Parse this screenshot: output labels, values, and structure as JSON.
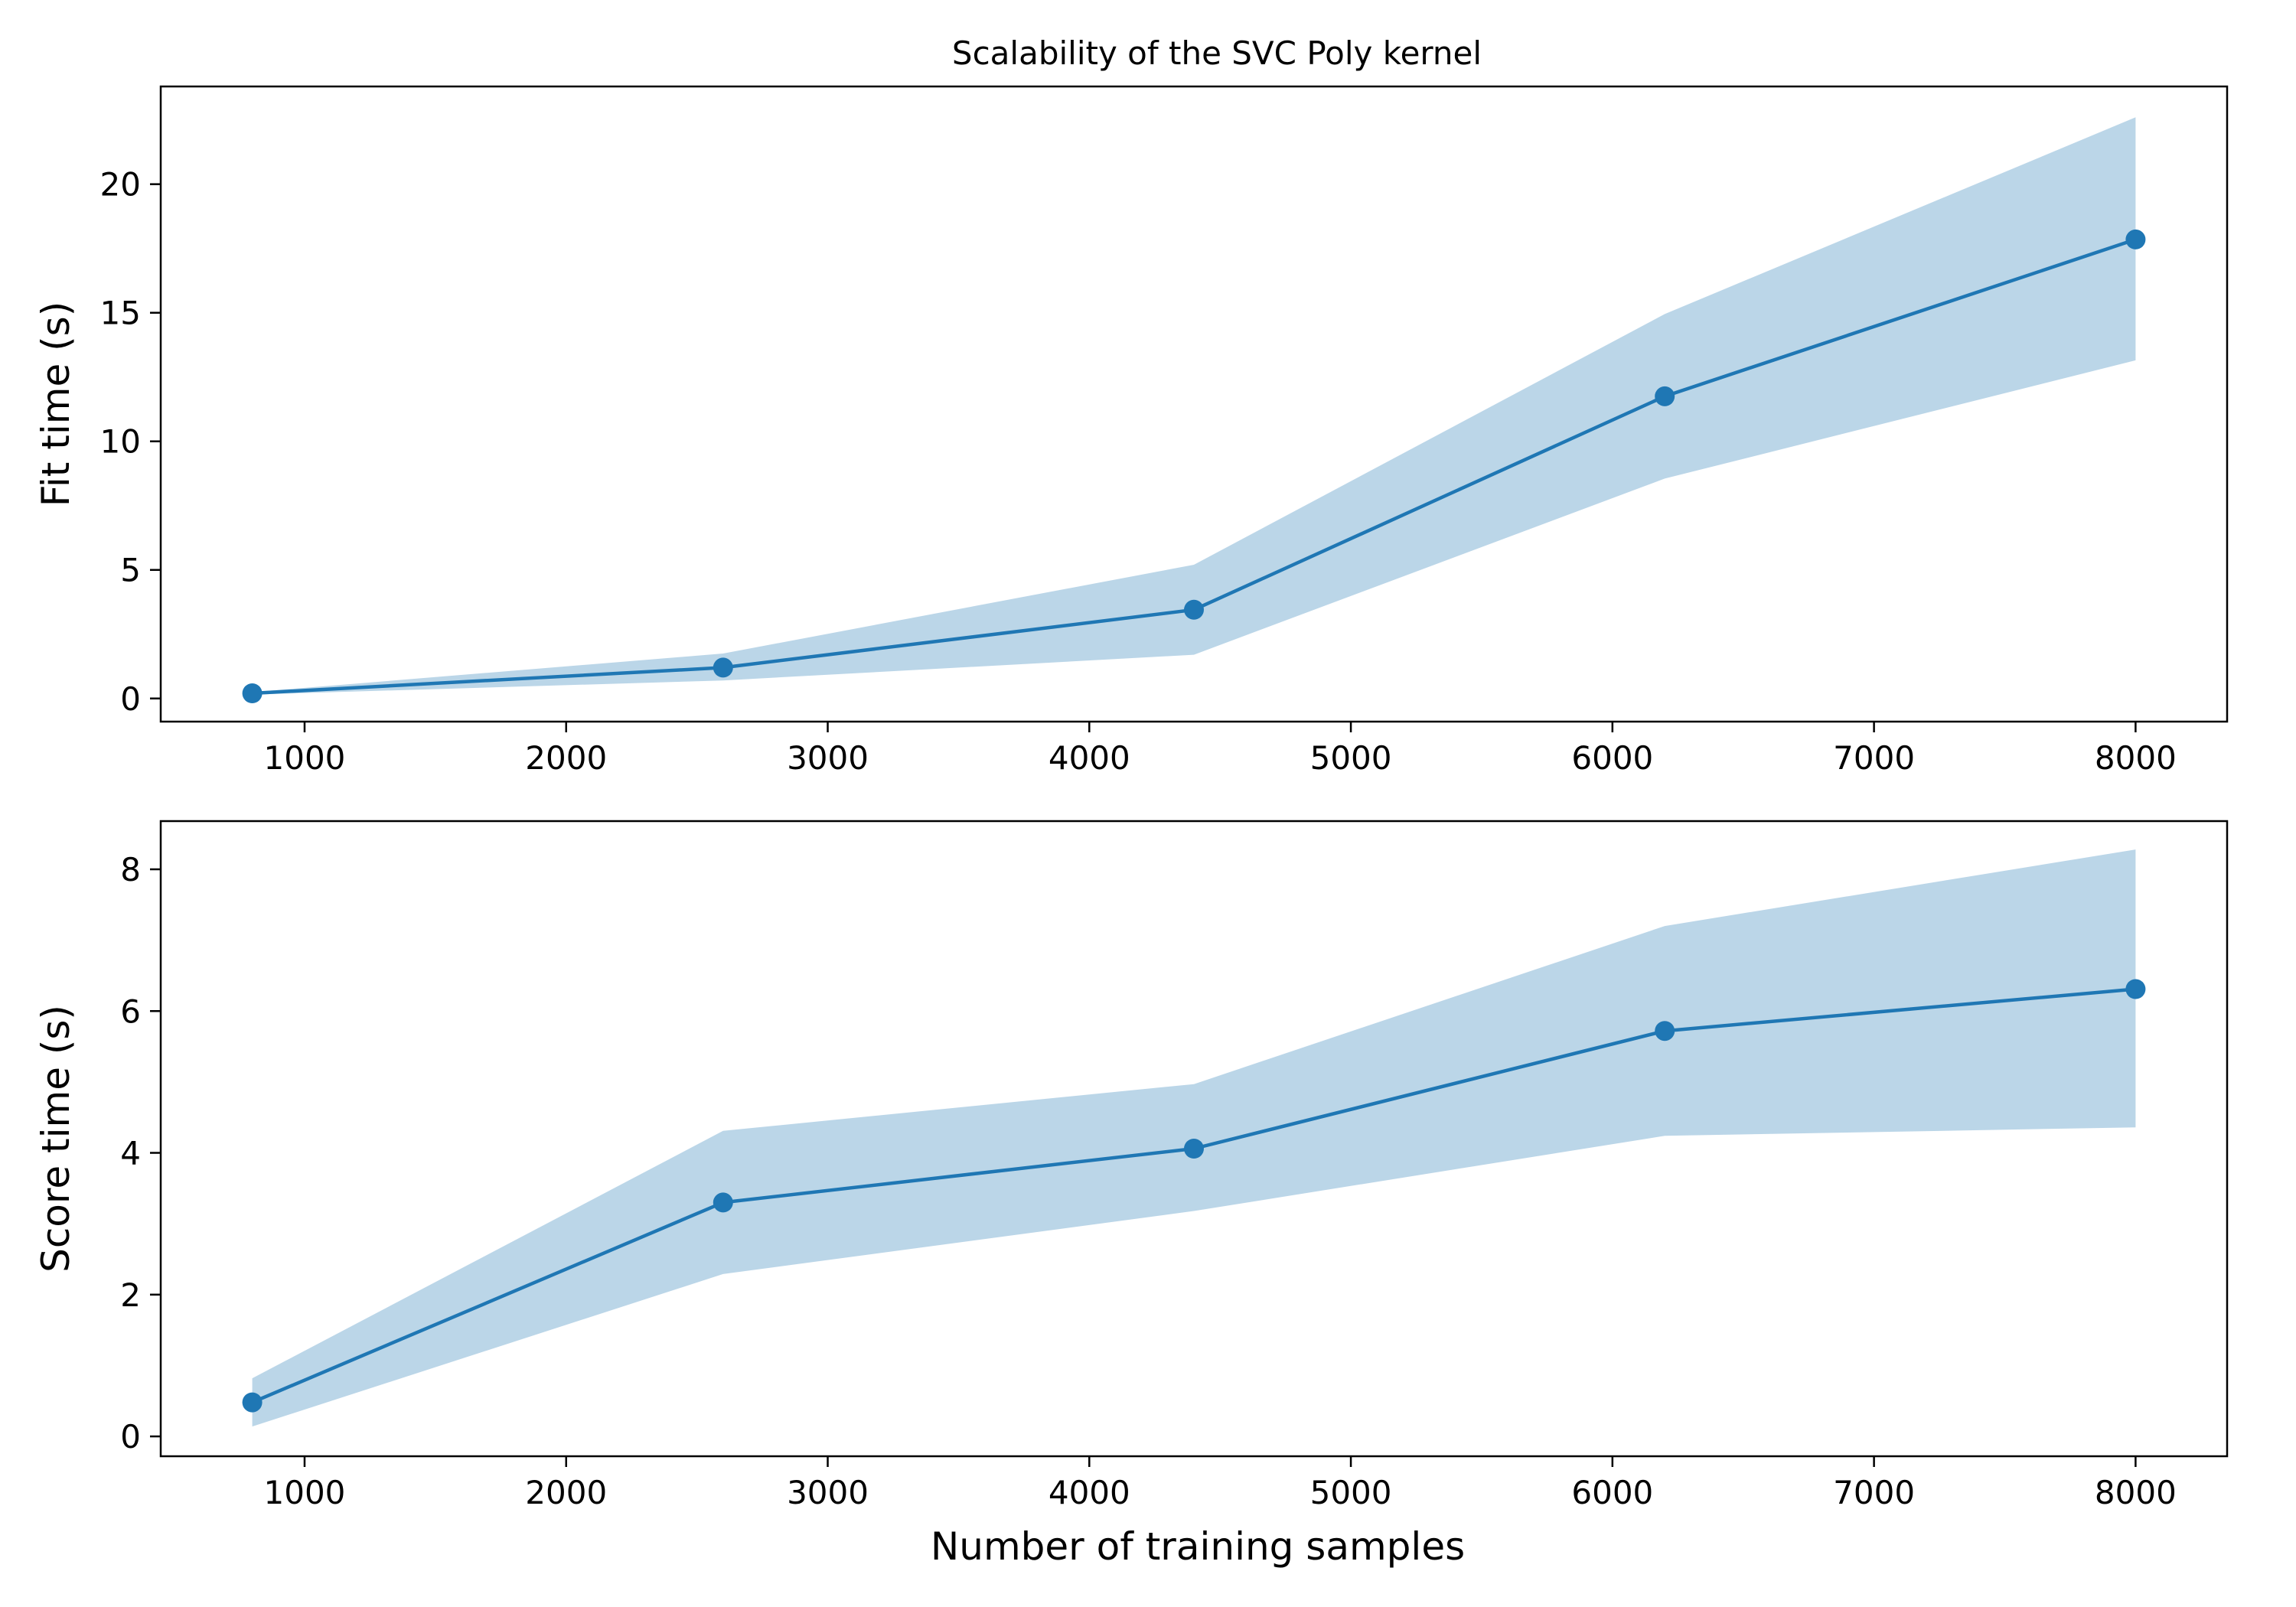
{
  "figure": {
    "title": "Scalability of the SVC Poly kernel"
  },
  "chart_data": [
    {
      "type": "line",
      "title": "Scalability of the SVC Poly kernel",
      "xlabel": "",
      "ylabel": "Fit time (s)",
      "x": [
        800,
        2600,
        4400,
        6200,
        8000
      ],
      "xlim": [
        450,
        8350
      ],
      "ylim": [
        -0.9,
        23.8
      ],
      "xticks": [
        1000,
        2000,
        3000,
        4000,
        5000,
        6000,
        7000,
        8000
      ],
      "yticks": [
        0,
        5,
        10,
        15,
        20
      ],
      "series": [
        {
          "values": [
            0.2,
            1.2,
            3.45,
            11.75,
            17.85
          ],
          "band_lower": [
            0.15,
            0.7,
            1.7,
            8.55,
            13.15
          ],
          "band_upper": [
            0.25,
            1.75,
            5.2,
            14.95,
            22.6
          ],
          "color": "#1f77b4",
          "band_color": "#1f77b4",
          "band_alpha": 0.3
        }
      ],
      "grid": false
    },
    {
      "type": "line",
      "title": "",
      "xlabel": "Number of training samples",
      "ylabel": "Score time (s)",
      "x": [
        800,
        2600,
        4400,
        6200,
        8000
      ],
      "xlim": [
        450,
        8350
      ],
      "ylim": [
        -0.28,
        8.68
      ],
      "xticks": [
        1000,
        2000,
        3000,
        4000,
        5000,
        6000,
        7000,
        8000
      ],
      "yticks": [
        0,
        2,
        4,
        6,
        8
      ],
      "series": [
        {
          "values": [
            0.48,
            3.3,
            4.06,
            5.72,
            6.31
          ],
          "band_lower": [
            0.14,
            2.29,
            3.18,
            4.24,
            4.36
          ],
          "band_upper": [
            0.82,
            4.31,
            4.97,
            7.2,
            8.28
          ],
          "color": "#1f77b4",
          "band_color": "#1f77b4",
          "band_alpha": 0.3
        }
      ],
      "grid": false
    }
  ]
}
